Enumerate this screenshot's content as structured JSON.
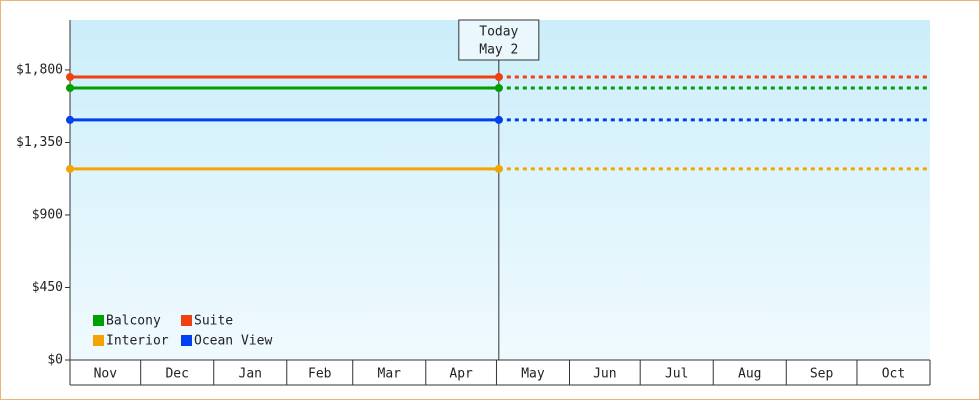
{
  "chart_data": {
    "type": "line",
    "categories": [
      "Nov",
      "Dec",
      "Jan",
      "Feb",
      "Mar",
      "Apr",
      "May",
      "Jun",
      "Jul",
      "Aug",
      "Sep",
      "Oct"
    ],
    "ylim": [
      0,
      2110
    ],
    "yticks": [
      {
        "value": 0,
        "label": "$0"
      },
      {
        "value": 450,
        "label": "$450"
      },
      {
        "value": 900,
        "label": "$900"
      },
      {
        "value": 1350,
        "label": "$1,350"
      },
      {
        "value": 1800,
        "label": "$1,800"
      }
    ],
    "annotation": {
      "title": "Today",
      "date": "May 2"
    },
    "series": [
      {
        "name": "Balcony",
        "color": "#00a000",
        "value": 1688
      },
      {
        "name": "Suite",
        "color": "#f04010",
        "value": 1756
      },
      {
        "name": "Interior",
        "color": "#f4a400",
        "value": 1186
      },
      {
        "name": "Ocean View",
        "color": "#0040f0",
        "value": 1490
      }
    ]
  }
}
